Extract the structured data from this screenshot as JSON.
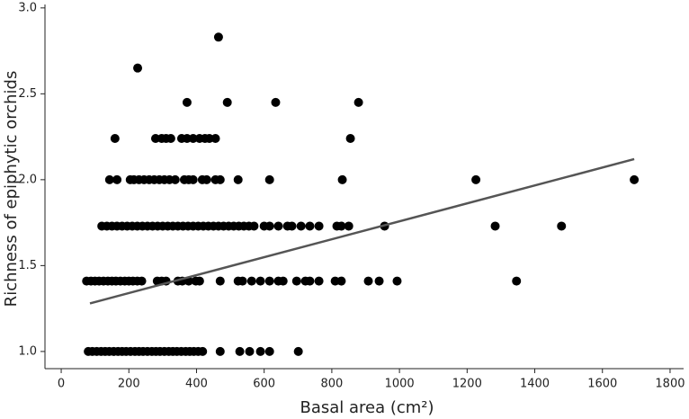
{
  "chart_data": {
    "type": "scatter",
    "xlabel": "Basal area (cm²)",
    "ylabel": "Richness of epiphytic orchids",
    "color": "#000000",
    "x": [
      80,
      92,
      105,
      118,
      130,
      142,
      155,
      168,
      180,
      192,
      205,
      218,
      230,
      242,
      255,
      268,
      280,
      292,
      305,
      318,
      330,
      342,
      355,
      368,
      380,
      392,
      405,
      418,
      470,
      528,
      557,
      589,
      616,
      701,
      75,
      88,
      100,
      112,
      125,
      138,
      150,
      162,
      175,
      188,
      200,
      212,
      225,
      238,
      284,
      297,
      310,
      345,
      358,
      377,
      398,
      409,
      470,
      523,
      536,
      563,
      589,
      616,
      642,
      656,
      696,
      722,
      735,
      762,
      810,
      828,
      908,
      940,
      993,
      1346,
      120,
      135,
      150,
      165,
      180,
      195,
      210,
      225,
      240,
      255,
      270,
      285,
      300,
      315,
      330,
      345,
      360,
      375,
      390,
      405,
      420,
      435,
      450,
      465,
      480,
      495,
      510,
      525,
      540,
      555,
      570,
      600,
      616,
      642,
      669,
      682,
      709,
      735,
      762,
      815,
      828,
      850,
      956,
      1283,
      1479,
      143,
      165,
      204,
      215,
      230,
      245,
      260,
      275,
      290,
      305,
      320,
      337,
      364,
      377,
      390,
      417,
      430,
      456,
      470,
      523,
      616,
      831,
      1226,
      1694,
      159,
      279,
      297,
      310,
      324,
      356,
      372,
      390,
      409,
      425,
      438,
      456,
      855,
      372,
      491,
      634,
      879,
      226,
      465
    ],
    "values": [
      1,
      1,
      1,
      1,
      1,
      1,
      1,
      1,
      1,
      1,
      1,
      1,
      1,
      1,
      1,
      1,
      1,
      1,
      1,
      1,
      1,
      1,
      1,
      1,
      1,
      1,
      1,
      1,
      1,
      1,
      1,
      1,
      1,
      1,
      1.41,
      1.41,
      1.41,
      1.41,
      1.41,
      1.41,
      1.41,
      1.41,
      1.41,
      1.41,
      1.41,
      1.41,
      1.41,
      1.41,
      1.41,
      1.41,
      1.41,
      1.41,
      1.41,
      1.41,
      1.41,
      1.41,
      1.41,
      1.41,
      1.41,
      1.41,
      1.41,
      1.41,
      1.41,
      1.41,
      1.41,
      1.41,
      1.41,
      1.41,
      1.41,
      1.41,
      1.41,
      1.41,
      1.41,
      1.41,
      1.73,
      1.73,
      1.73,
      1.73,
      1.73,
      1.73,
      1.73,
      1.73,
      1.73,
      1.73,
      1.73,
      1.73,
      1.73,
      1.73,
      1.73,
      1.73,
      1.73,
      1.73,
      1.73,
      1.73,
      1.73,
      1.73,
      1.73,
      1.73,
      1.73,
      1.73,
      1.73,
      1.73,
      1.73,
      1.73,
      1.73,
      1.73,
      1.73,
      1.73,
      1.73,
      1.73,
      1.73,
      1.73,
      1.73,
      1.73,
      1.73,
      1.73,
      1.73,
      1.73,
      1.73,
      2,
      2,
      2,
      2,
      2,
      2,
      2,
      2,
      2,
      2,
      2,
      2,
      2,
      2,
      2,
      2,
      2,
      2,
      2,
      2,
      2,
      2,
      2,
      2,
      2.24,
      2.24,
      2.24,
      2.24,
      2.24,
      2.24,
      2.24,
      2.24,
      2.24,
      2.24,
      2.24,
      2.24,
      2.24,
      2.45,
      2.45,
      2.45,
      2.45,
      2.65,
      2.83
    ],
    "fit": {
      "x": [
        85,
        1694
      ],
      "values": [
        1.28,
        2.12
      ],
      "color": "#555555"
    },
    "xlim": [
      -48,
      1840
    ],
    "ylim": [
      0.9,
      3.02
    ],
    "xticks": [
      0,
      200,
      400,
      600,
      800,
      1000,
      1200,
      1400,
      1600,
      1800
    ],
    "yticks": [
      {
        "value": 1,
        "label": "1.0"
      },
      {
        "value": 1.5,
        "label": "1.5"
      },
      {
        "value": 2,
        "label": "2.0"
      },
      {
        "value": 2.5,
        "label": "2.5"
      },
      {
        "value": 3,
        "label": "3.0"
      }
    ]
  }
}
